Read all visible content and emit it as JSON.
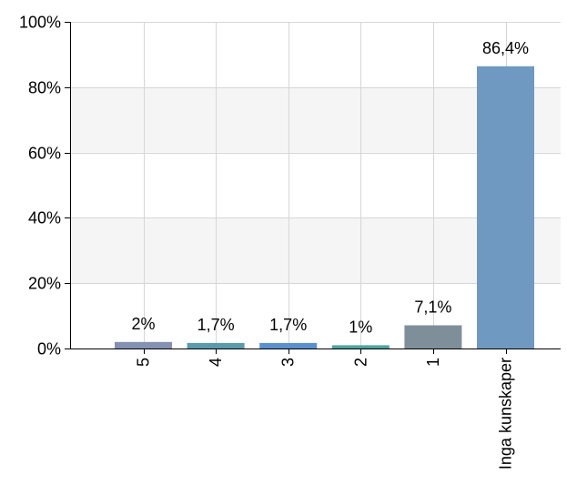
{
  "chart_data": {
    "type": "bar",
    "categories": [
      "5",
      "4",
      "3",
      "2",
      "1",
      "Inga kunskaper"
    ],
    "values": [
      2,
      1.7,
      1.7,
      1,
      7.1,
      86.4
    ],
    "data_labels": [
      "2%",
      "1,7%",
      "1,7%",
      "1%",
      "7,1%",
      "86,4%"
    ],
    "bar_colors": [
      "#8591b2",
      "#5c9aab",
      "#5b8fcd",
      "#4da49d",
      "#7f8f99",
      "#6f99c0"
    ],
    "ylim": [
      0,
      100
    ],
    "yticks": [
      0,
      20,
      40,
      60,
      80,
      100
    ],
    "ytick_labels": [
      "0%",
      "20%",
      "40%",
      "60%",
      "80%",
      "100%"
    ],
    "grid": true,
    "band_color": "#f5f5f5",
    "title": "",
    "xlabel": "",
    "ylabel": ""
  }
}
